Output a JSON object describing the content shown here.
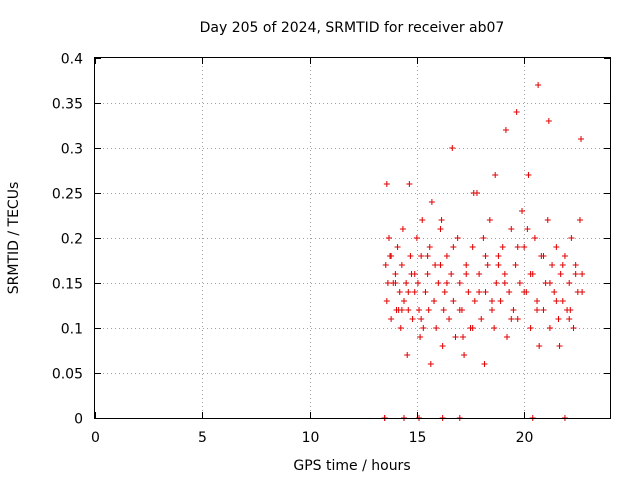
{
  "chart_data": {
    "type": "scatter",
    "title": "Day 205 of 2024, SRMTID for receiver ab07",
    "xlabel": "GPS time / hours",
    "ylabel": "SRMTID / TECUs",
    "xlim": [
      0,
      24
    ],
    "ylim": [
      0,
      0.4
    ],
    "xticks": [
      0,
      5,
      10,
      15,
      20
    ],
    "xtick_labels": [
      "0",
      "5",
      "10",
      "15",
      "20"
    ],
    "yticks": [
      0,
      0.05,
      0.1,
      0.15,
      0.2,
      0.25,
      0.3,
      0.35,
      0.4
    ],
    "ytick_labels": [
      "0",
      "0.05",
      "0.1",
      "0.15",
      "0.2",
      "0.25",
      "0.3",
      "0.35",
      "0.4"
    ],
    "grid": true,
    "marker": "+",
    "color": "#e00000",
    "series": [
      {
        "name": "SRMTID",
        "x": [
          13.55,
          13.6,
          13.7,
          13.75,
          13.8,
          13.9,
          14.0,
          14.05,
          14.1,
          14.2,
          14.25,
          14.3,
          14.35,
          14.4,
          14.5,
          14.55,
          14.6,
          14.7,
          14.75,
          14.8,
          14.9,
          15.0,
          15.05,
          15.1,
          15.2,
          15.25,
          15.3,
          15.4,
          15.5,
          15.55,
          15.6,
          15.7,
          15.8,
          15.85,
          15.9,
          16.0,
          16.1,
          16.2,
          16.25,
          16.3,
          16.4,
          16.5,
          16.6,
          16.7,
          16.8,
          16.9,
          17.0,
          17.1,
          17.2,
          17.3,
          17.4,
          17.5,
          17.6,
          17.7,
          17.8,
          17.9,
          18.0,
          18.1,
          18.2,
          18.3,
          18.4,
          18.5,
          18.6,
          18.7,
          18.8,
          18.9,
          19.0,
          19.1,
          19.2,
          19.3,
          19.4,
          19.5,
          19.6,
          19.7,
          19.8,
          19.9,
          20.0,
          20.1,
          20.2,
          20.3,
          20.4,
          20.5,
          20.6,
          20.7,
          20.8,
          20.9,
          21.0,
          21.1,
          21.2,
          21.3,
          21.4,
          21.5,
          21.6,
          21.7,
          21.8,
          21.9,
          22.0,
          22.1,
          22.2,
          22.3,
          22.4,
          22.5,
          22.6,
          22.7,
          13.6,
          13.8,
          14.0,
          14.3,
          14.6,
          14.9,
          15.2,
          15.5,
          15.8,
          16.1,
          16.4,
          16.7,
          17.0,
          17.3,
          17.6,
          17.9,
          18.2,
          18.5,
          18.8,
          19.1,
          19.4,
          19.7,
          20.0,
          20.3,
          20.6,
          20.9,
          21.2,
          21.5,
          21.8,
          22.1,
          22.4,
          22.7,
          13.65,
          14.15,
          14.65,
          15.15,
          15.65,
          16.15,
          16.65,
          17.15,
          17.65,
          18.15,
          18.65,
          19.15,
          19.65,
          20.15,
          20.65,
          21.15,
          21.65,
          22.15,
          22.65,
          13.5,
          13.5,
          14.4,
          15.1,
          16.2,
          17.0,
          20.4,
          21.9
        ],
        "y": [
          0.17,
          0.13,
          0.2,
          0.18,
          0.11,
          0.15,
          0.16,
          0.12,
          0.19,
          0.14,
          0.1,
          0.17,
          0.21,
          0.13,
          0.15,
          0.07,
          0.12,
          0.18,
          0.16,
          0.11,
          0.14,
          0.2,
          0.15,
          0.12,
          0.18,
          0.22,
          0.1,
          0.14,
          0.16,
          0.12,
          0.19,
          0.24,
          0.13,
          0.17,
          0.1,
          0.15,
          0.21,
          0.08,
          0.12,
          0.14,
          0.18,
          0.11,
          0.16,
          0.13,
          0.09,
          0.2,
          0.15,
          0.12,
          0.07,
          0.17,
          0.14,
          0.1,
          0.19,
          0.13,
          0.25,
          0.16,
          0.11,
          0.2,
          0.14,
          0.17,
          0.22,
          0.12,
          0.1,
          0.15,
          0.18,
          0.13,
          0.19,
          0.16,
          0.09,
          0.14,
          0.21,
          0.12,
          0.17,
          0.11,
          0.15,
          0.23,
          0.19,
          0.14,
          0.27,
          0.1,
          0.16,
          0.2,
          0.13,
          0.08,
          0.18,
          0.12,
          0.15,
          0.22,
          0.1,
          0.17,
          0.14,
          0.19,
          0.11,
          0.16,
          0.13,
          0.18,
          0.12,
          0.15,
          0.2,
          0.1,
          0.17,
          0.14,
          0.22,
          0.16,
          0.26,
          0.18,
          0.15,
          0.12,
          0.14,
          0.16,
          0.11,
          0.18,
          0.13,
          0.17,
          0.15,
          0.19,
          0.12,
          0.16,
          0.1,
          0.14,
          0.18,
          0.13,
          0.17,
          0.15,
          0.11,
          0.19,
          0.14,
          0.16,
          0.12,
          0.18,
          0.15,
          0.13,
          0.17,
          0.11,
          0.16,
          0.14,
          0.15,
          0.12,
          0.26,
          0.09,
          0.06,
          0.22,
          0.3,
          0.09,
          0.25,
          0.06,
          0.27,
          0.32,
          0.34,
          0.21,
          0.37,
          0.33,
          0.08,
          0.12,
          0.31,
          0.0,
          0.0,
          0.0,
          0.0,
          0.0,
          0.0,
          0.0,
          0.0
        ]
      }
    ]
  }
}
